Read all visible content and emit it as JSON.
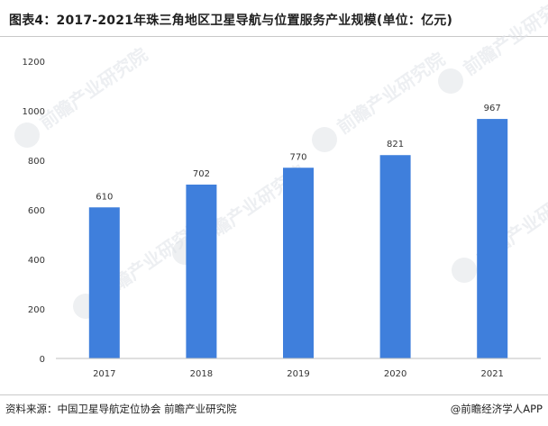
{
  "header": {
    "title": "图表4：2017-2021年珠三角地区卫星导航与位置服务产业规模(单位：亿元)"
  },
  "footer": {
    "source": "资料来源：中国卫星导航定位协会 前瞻产业研究院",
    "credit": "@前瞻经济学人APP"
  },
  "watermark": {
    "text": "前瞻产业研究院"
  },
  "colors": {
    "bar": "#3f7fdc",
    "axis": "#bfbfbf"
  },
  "chart_data": {
    "type": "bar",
    "title": "图表4：2017-2021年珠三角地区卫星导航与位置服务产业规模(单位：亿元)",
    "categories": [
      "2017",
      "2018",
      "2019",
      "2020",
      "2021"
    ],
    "values": [
      610,
      702,
      770,
      821,
      967
    ],
    "ylim": [
      0,
      1200
    ],
    "yticks": [
      0,
      200,
      400,
      600,
      800,
      1000,
      1200
    ],
    "grid": false,
    "legend": "none",
    "xlabel": "",
    "ylabel": ""
  }
}
